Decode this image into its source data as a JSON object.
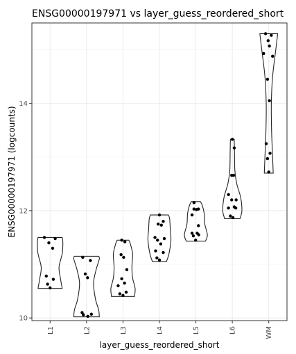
{
  "chart_data": {
    "type": "violin",
    "title": "ENSG00000197971 vs layer_guess_reordered_short",
    "xlabel": "layer_guess_reordered_short",
    "ylabel": "ENSG00000197971 (logcounts)",
    "ylim": [
      9.95,
      15.5
    ],
    "yticks": [
      10,
      12,
      14
    ],
    "grid": true,
    "categories": [
      "L1",
      "L2",
      "L3",
      "L4",
      "L5",
      "L6",
      "WM"
    ],
    "groups": [
      {
        "category": "L1",
        "min": 10.55,
        "max": 11.5,
        "density": [
          [
            10.55,
            0.95
          ],
          [
            10.75,
            0.8
          ],
          [
            10.95,
            0.7
          ],
          [
            11.2,
            0.95
          ],
          [
            11.4,
            1.0
          ],
          [
            11.5,
            0.95
          ]
        ],
        "points": [
          [
            -0.45,
            11.5
          ],
          [
            0.4,
            11.48
          ],
          [
            -0.1,
            11.4
          ],
          [
            0.2,
            11.3
          ],
          [
            -0.3,
            10.78
          ],
          [
            -0.2,
            10.63
          ],
          [
            0.25,
            10.72
          ],
          [
            0.0,
            10.56
          ]
        ]
      },
      {
        "category": "L2",
        "min": 10.02,
        "max": 11.15,
        "density": [
          [
            10.02,
            1.0
          ],
          [
            10.15,
            0.95
          ],
          [
            10.35,
            0.7
          ],
          [
            10.65,
            0.55
          ],
          [
            10.9,
            0.75
          ],
          [
            11.1,
            1.0
          ],
          [
            11.15,
            0.95
          ]
        ],
        "points": [
          [
            -0.3,
            11.13
          ],
          [
            0.3,
            11.07
          ],
          [
            -0.1,
            10.82
          ],
          [
            0.08,
            10.75
          ],
          [
            -0.35,
            10.1
          ],
          [
            -0.25,
            10.06
          ],
          [
            0.1,
            10.03
          ],
          [
            0.38,
            10.07
          ]
        ]
      },
      {
        "category": "L3",
        "min": 10.4,
        "max": 11.45,
        "density": [
          [
            10.4,
            0.9
          ],
          [
            10.55,
            0.95
          ],
          [
            10.75,
            0.75
          ],
          [
            10.95,
            0.7
          ],
          [
            11.2,
            0.75
          ],
          [
            11.4,
            0.55
          ],
          [
            11.45,
            0.45
          ]
        ],
        "points": [
          [
            -0.1,
            11.45
          ],
          [
            0.15,
            11.42
          ],
          [
            -0.15,
            11.18
          ],
          [
            0.05,
            11.13
          ],
          [
            0.3,
            10.9
          ],
          [
            -0.38,
            10.6
          ],
          [
            -0.1,
            10.73
          ],
          [
            0.12,
            10.65
          ],
          [
            -0.25,
            10.45
          ],
          [
            0.0,
            10.42
          ],
          [
            0.25,
            10.48
          ]
        ]
      },
      {
        "category": "L4",
        "min": 11.05,
        "max": 11.92,
        "density": [
          [
            11.05,
            0.55
          ],
          [
            11.2,
            0.75
          ],
          [
            11.45,
            0.9
          ],
          [
            11.65,
            0.85
          ],
          [
            11.85,
            0.8
          ],
          [
            11.92,
            0.7
          ]
        ],
        "points": [
          [
            0.0,
            11.92
          ],
          [
            -0.1,
            11.75
          ],
          [
            0.15,
            11.73
          ],
          [
            0.3,
            11.8
          ],
          [
            -0.35,
            11.5
          ],
          [
            0.38,
            11.48
          ],
          [
            -0.15,
            11.45
          ],
          [
            0.1,
            11.38
          ],
          [
            -0.3,
            11.25
          ],
          [
            0.3,
            11.22
          ],
          [
            -0.2,
            11.12
          ],
          [
            0.0,
            11.08
          ]
        ]
      },
      {
        "category": "L5",
        "min": 11.43,
        "max": 12.17,
        "density": [
          [
            11.43,
            0.75
          ],
          [
            11.55,
            0.9
          ],
          [
            11.75,
            0.7
          ],
          [
            11.95,
            0.65
          ],
          [
            12.1,
            0.5
          ],
          [
            12.17,
            0.35
          ]
        ],
        "points": [
          [
            -0.15,
            12.15
          ],
          [
            -0.15,
            12.03
          ],
          [
            0.05,
            12.02
          ],
          [
            0.2,
            12.03
          ],
          [
            -0.3,
            11.92
          ],
          [
            0.2,
            11.72
          ],
          [
            -0.3,
            11.58
          ],
          [
            -0.2,
            11.53
          ],
          [
            0.1,
            11.58
          ],
          [
            0.22,
            11.55
          ],
          [
            -0.02,
            11.45
          ]
        ]
      },
      {
        "category": "L6",
        "min": 11.85,
        "max": 13.33,
        "density": [
          [
            11.85,
            0.6
          ],
          [
            12.0,
            0.75
          ],
          [
            12.25,
            0.65
          ],
          [
            12.5,
            0.35
          ],
          [
            12.75,
            0.2
          ],
          [
            13.1,
            0.17
          ],
          [
            13.33,
            0.15
          ]
        ],
        "points": [
          [
            0.0,
            13.33
          ],
          [
            0.15,
            13.17
          ],
          [
            -0.05,
            12.66
          ],
          [
            0.1,
            12.66
          ],
          [
            -0.3,
            12.3
          ],
          [
            -0.05,
            12.2
          ],
          [
            0.3,
            12.2
          ],
          [
            -0.3,
            12.05
          ],
          [
            0.15,
            12.07
          ],
          [
            0.27,
            12.05
          ],
          [
            -0.15,
            11.9
          ],
          [
            0.05,
            11.87
          ]
        ]
      },
      {
        "category": "WM",
        "min": 12.7,
        "max": 15.3,
        "density": [
          [
            12.7,
            0.35
          ],
          [
            13.0,
            0.3
          ],
          [
            13.5,
            0.22
          ],
          [
            14.0,
            0.2
          ],
          [
            14.5,
            0.3
          ],
          [
            15.0,
            0.55
          ],
          [
            15.3,
            0.7
          ]
        ],
        "points": [
          [
            -0.25,
            15.3
          ],
          [
            0.2,
            15.27
          ],
          [
            -0.05,
            15.17
          ],
          [
            0.05,
            15.07
          ],
          [
            0.3,
            14.88
          ],
          [
            -0.4,
            14.93
          ],
          [
            -0.1,
            14.45
          ],
          [
            0.05,
            14.05
          ],
          [
            -0.2,
            13.25
          ],
          [
            0.1,
            13.07
          ],
          [
            -0.1,
            12.97
          ],
          [
            0.0,
            12.72
          ]
        ]
      }
    ]
  }
}
